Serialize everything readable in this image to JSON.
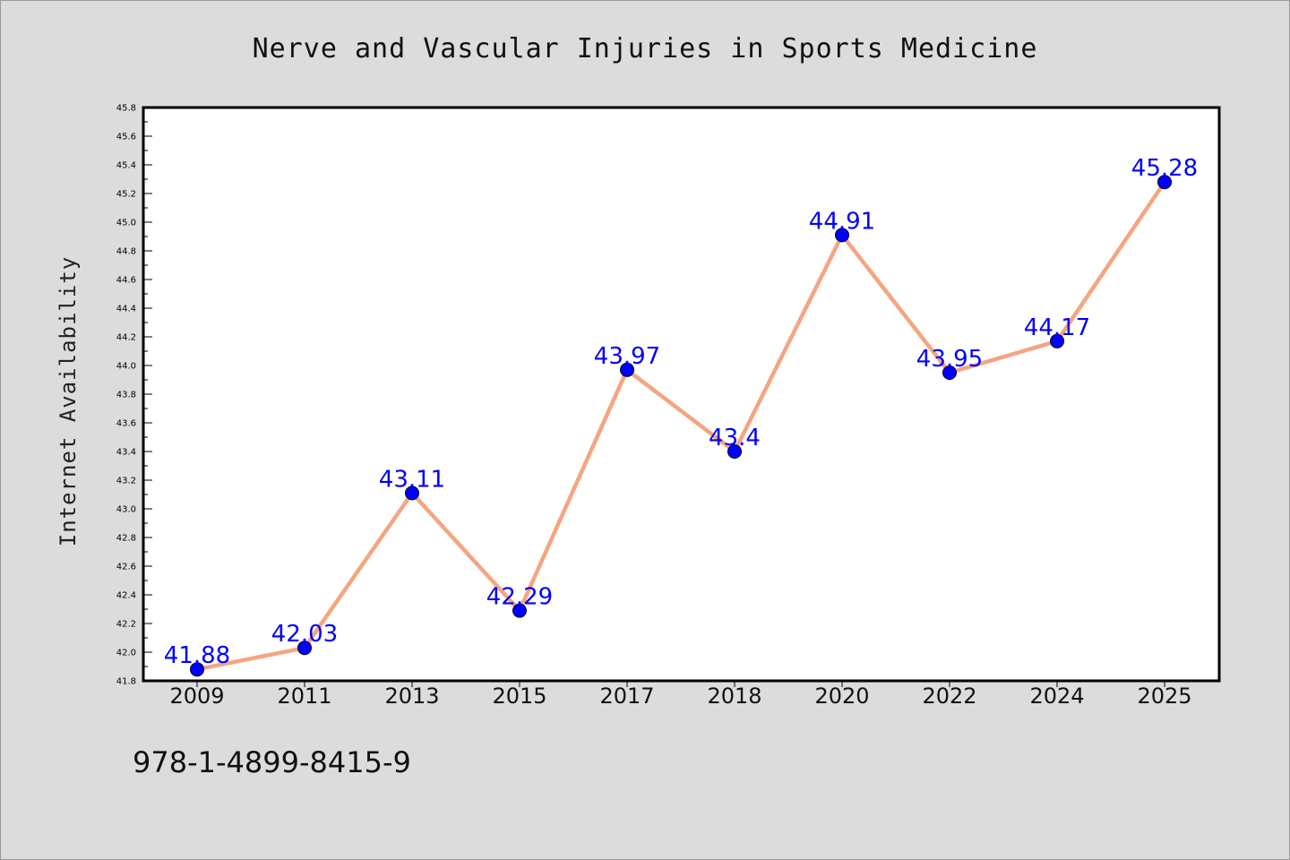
{
  "chart_data": {
    "type": "line",
    "title": "Nerve and Vascular Injuries in Sports Medicine",
    "xlabel": "",
    "ylabel": "Internet Availability",
    "categories": [
      "2009",
      "2011",
      "2013",
      "2015",
      "2017",
      "2018",
      "2020",
      "2022",
      "2024",
      "2025"
    ],
    "series": [
      {
        "values": [
          41.88,
          42.03,
          43.11,
          42.29,
          43.97,
          43.4,
          44.91,
          43.95,
          44.17,
          45.28
        ],
        "labels": [
          "41.88",
          "42.03",
          "43.11",
          "42.29",
          "43.97",
          "43.4",
          "44.91",
          "43.95",
          "44.17",
          "45.28"
        ],
        "line_color": "#f4a582",
        "marker_color": "#0000ff"
      }
    ],
    "ylim": [
      41.8,
      45.8
    ],
    "yticks": [
      "41.8",
      "42.0",
      "42.2",
      "42.4",
      "42.6",
      "42.8",
      "43.0",
      "43.2",
      "43.4",
      "43.6",
      "43.8",
      "44.0",
      "44.2",
      "44.4",
      "44.6",
      "44.8",
      "45.0",
      "45.2",
      "45.4",
      "45.6",
      "45.8"
    ],
    "grid": false,
    "legend": "none"
  },
  "footer": {
    "isbn": "978-1-4899-8415-9"
  }
}
